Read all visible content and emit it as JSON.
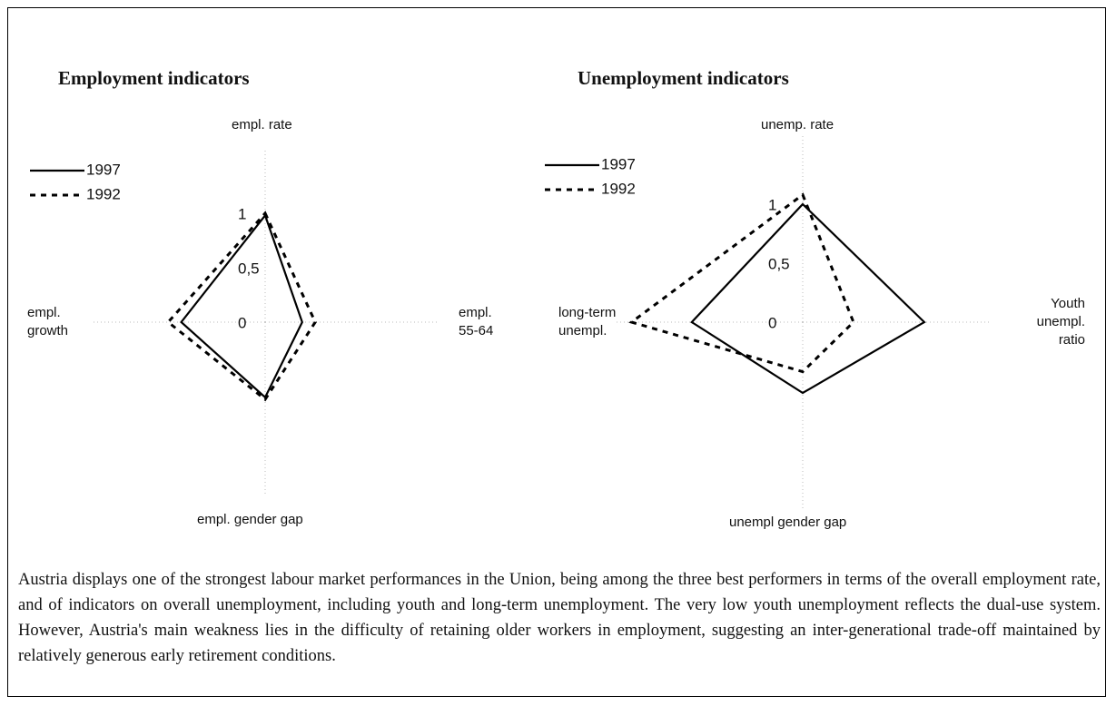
{
  "chart_data": [
    {
      "type": "radar",
      "title": "Employment indicators",
      "categories": [
        "empl. rate",
        "empl.\n55-64",
        "empl. gender gap",
        "empl.\ngrowth"
      ],
      "rlim": [
        0,
        1
      ],
      "rticks": [
        0,
        {
          "value": 0.5,
          "label": "0,5"
        },
        1
      ],
      "series": [
        {
          "name": "1997",
          "color": "#000000",
          "line_style": "solid",
          "values": [
            0.98,
            0.34,
            0.69,
            0.77
          ]
        },
        {
          "name": "1992",
          "color": "#000000",
          "line_style": "dashed",
          "values": [
            1.0,
            0.46,
            0.71,
            0.89
          ]
        }
      ]
    },
    {
      "type": "radar",
      "title": "Unemployment indicators",
      "categories": [
        "unemp. rate",
        "Youth\nunempl.\nratio",
        "unempl gender gap",
        "long-term\nunempl."
      ],
      "rlim": [
        0,
        1
      ],
      "rticks": [
        0,
        {
          "value": 0.5,
          "label": "0,5"
        },
        1
      ],
      "series": [
        {
          "name": "1997",
          "color": "#000000",
          "line_style": "solid",
          "values": [
            1.0,
            1.03,
            0.6,
            0.94
          ]
        },
        {
          "name": "1992",
          "color": "#000000",
          "line_style": "dashed",
          "values": [
            1.08,
            0.43,
            0.42,
            1.45
          ]
        }
      ]
    }
  ],
  "text": "Austria displays one of the strongest labour market performances in the Union, being among the three best performers in terms of the overall employment rate, and of indicators on overall unemployment, including youth and long-term unemployment. The very low youth unemployment reflects the dual-use system. However, Austria's main weakness lies in the difficulty of retaining older workers in employment,  suggesting an inter-generational trade-off maintained by relatively generous early retirement conditions."
}
